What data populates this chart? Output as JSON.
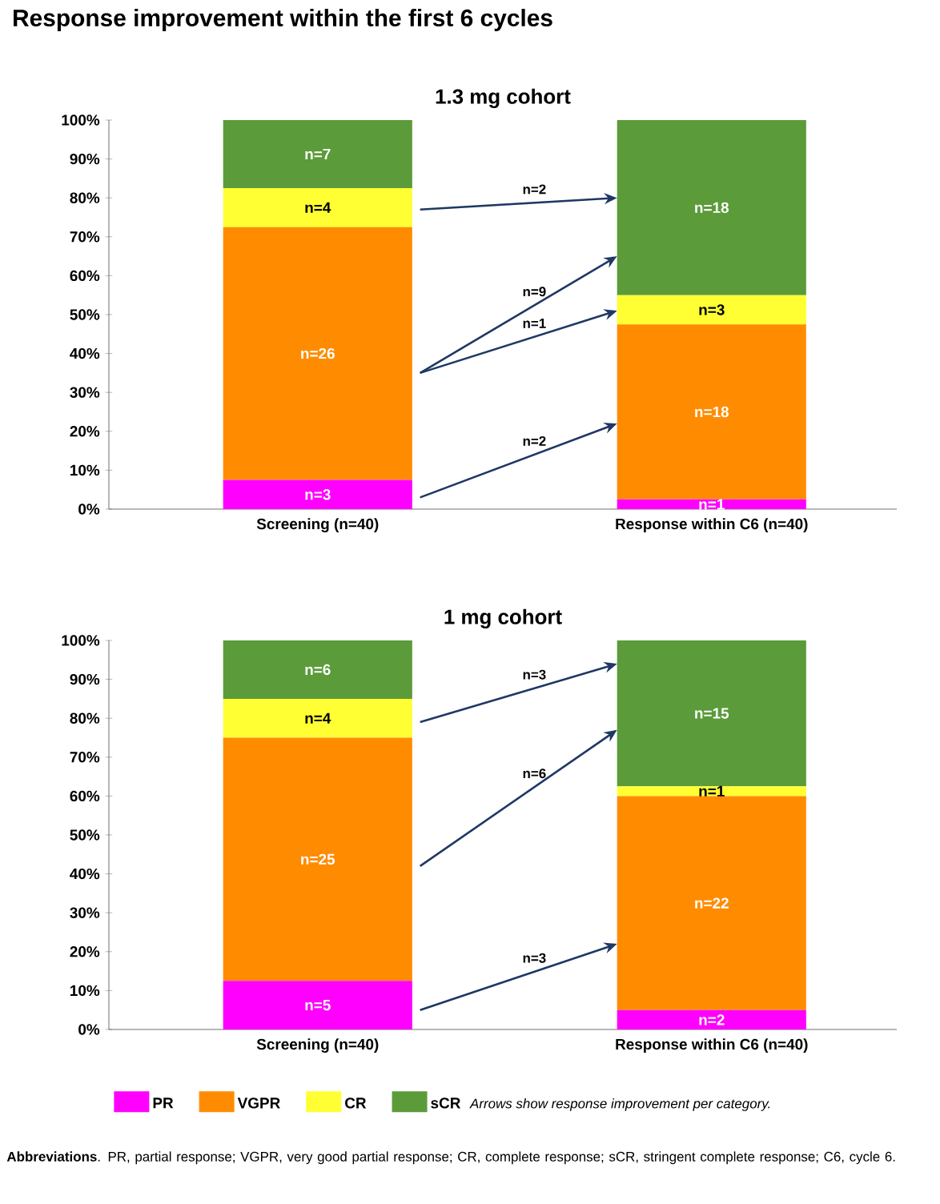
{
  "chart_data": [
    {
      "type": "bar",
      "stacked": true,
      "title": "Response improvement within the first 6 cycles",
      "subtitle": "1.3 mg cohort",
      "categories": [
        "Screening (n=40)",
        "Response within C6 (n=40)"
      ],
      "ylim": [
        0,
        100
      ],
      "yticks": [
        {
          "value": 0,
          "label": "0%"
        },
        {
          "value": 10,
          "label": "10%"
        },
        {
          "value": 20,
          "label": "20%"
        },
        {
          "value": 30,
          "label": "30%"
        },
        {
          "value": 40,
          "label": "40%"
        },
        {
          "value": 50,
          "label": "50%"
        },
        {
          "value": 60,
          "label": "60%"
        },
        {
          "value": 70,
          "label": "70%"
        },
        {
          "value": 80,
          "label": "80%"
        },
        {
          "value": 90,
          "label": "90%"
        },
        {
          "value": 100,
          "label": "100%"
        }
      ],
      "series": [
        {
          "color": "#ff00ff",
          "values": [
            7.5,
            2.5
          ]
        },
        {
          "color": "#ff8c00",
          "values": [
            65,
            45
          ]
        },
        {
          "color": "#ffff33",
          "values": [
            10,
            7.5
          ]
        },
        {
          "color": "#5b9b3a",
          "values": [
            17.5,
            45
          ]
        }
      ],
      "annotations": [
        "n=3",
        "n=26",
        "n=4",
        "n=7",
        "n=1",
        "n=18",
        "n=3",
        "n=18",
        "n=2",
        "n=9",
        "n=1",
        "n=2"
      ]
    },
    {
      "type": "bar",
      "stacked": true,
      "title": "1 mg cohort",
      "categories": [
        "Screening (n=40)",
        "Response within C6 (n=40)"
      ],
      "ylim": [
        0,
        100
      ],
      "legend": "bottom",
      "yticks": [
        {
          "value": 0,
          "label": "0%"
        },
        {
          "value": 10,
          "label": "10%"
        },
        {
          "value": 20,
          "label": "20%"
        },
        {
          "value": 30,
          "label": "30%"
        },
        {
          "value": 40,
          "label": "40%"
        },
        {
          "value": 50,
          "label": "50%"
        },
        {
          "value": 60,
          "label": "60%"
        },
        {
          "value": 70,
          "label": "70%"
        },
        {
          "value": 80,
          "label": "80%"
        },
        {
          "value": 90,
          "label": "90%"
        },
        {
          "value": 100,
          "label": "100%"
        }
      ],
      "series": [
        {
          "name": "PR",
          "color": "#ff00ff",
          "values": [
            12.5,
            5
          ]
        },
        {
          "name": "VGPR",
          "color": "#ff8c00",
          "values": [
            62.5,
            55
          ]
        },
        {
          "name": "CR",
          "color": "#ffff33",
          "values": [
            10,
            2.5
          ]
        },
        {
          "name": "sCR",
          "color": "#5b9b3a",
          "values": [
            15,
            37.5
          ]
        }
      ],
      "annotations": [
        "n=5",
        "n=25",
        "n=4",
        "n=6",
        "n=2",
        "n=22",
        "n=1",
        "n=15",
        "n=3",
        "n=6",
        "n=3",
        "Arrows show response improvement per category.",
        "**Abbreviations**. PR, partial response; VGPR, very good partial response; CR, complete response; sCR, stringent complete response; C6, cycle 6."
      ]
    }
  ]
}
